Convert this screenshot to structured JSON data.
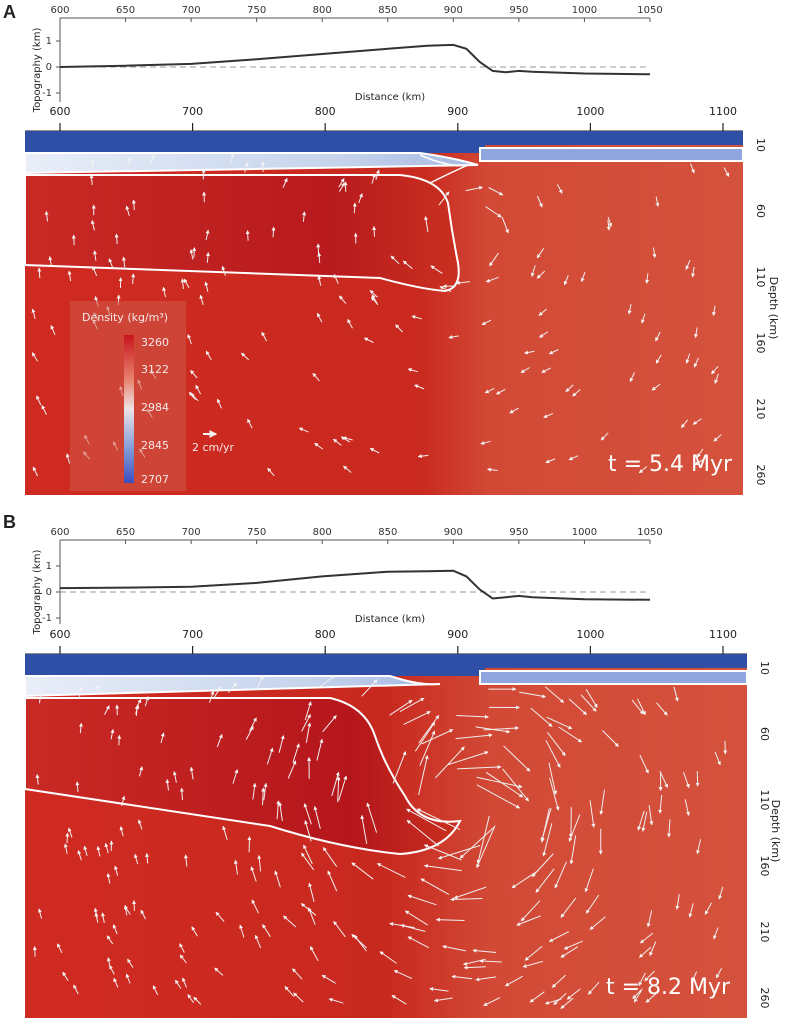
{
  "panels": [
    {
      "letter": "A",
      "topo_ylabel": "Topography (km)",
      "topo_xlabel": "Distance (km)",
      "topo_xticks": [
        "600",
        "650",
        "700",
        "750",
        "800",
        "850",
        "900",
        "950",
        "1000",
        "1050"
      ],
      "topo_yticks": [
        "1",
        "0",
        "-1"
      ],
      "field_xticks": [
        "600",
        "700",
        "800",
        "900",
        "1000",
        "1100"
      ],
      "depth_label": "Depth (km)",
      "depth_ticks": [
        "10",
        "60",
        "110",
        "160",
        "210",
        "260"
      ],
      "time_label": "t = 5.4 Myr"
    },
    {
      "letter": "B",
      "topo_ylabel": "Topography (km)",
      "topo_xlabel": "Distance (km)",
      "topo_xticks": [
        "600",
        "650",
        "700",
        "750",
        "800",
        "850",
        "900",
        "950",
        "1000",
        "1050"
      ],
      "topo_yticks": [
        "1",
        "0",
        "-1"
      ],
      "field_xticks": [
        "600",
        "700",
        "800",
        "900",
        "1000",
        "1100"
      ],
      "depth_label": "Depth (km)",
      "depth_ticks": [
        "10",
        "60",
        "110",
        "160",
        "210",
        "260"
      ],
      "time_label": "t = 8.2 Myr"
    }
  ],
  "colorbar": {
    "title": "Density (kg/m³)",
    "ticks": [
      "3260",
      "3122",
      "2984",
      "2845",
      "2707"
    ]
  },
  "velocity_scale_label": "2 cm/yr",
  "chart_data": [
    {
      "type": "line",
      "panel": "A",
      "x": [
        600,
        650,
        700,
        750,
        800,
        850,
        880,
        900,
        910,
        920,
        930,
        940,
        950,
        960,
        1000,
        1050
      ],
      "y": [
        0.0,
        0.05,
        0.12,
        0.3,
        0.5,
        0.7,
        0.82,
        0.85,
        0.7,
        0.2,
        -0.15,
        -0.2,
        -0.15,
        -0.18,
        -0.25,
        -0.28
      ],
      "xlabel": "Distance (km)",
      "ylabel": "Topography (km)",
      "xlim": [
        600,
        1050
      ],
      "ylim": [
        -1,
        1
      ]
    },
    {
      "type": "line",
      "panel": "B",
      "x": [
        600,
        650,
        700,
        750,
        800,
        850,
        880,
        900,
        910,
        920,
        930,
        940,
        950,
        960,
        1000,
        1050
      ],
      "y": [
        0.15,
        0.17,
        0.2,
        0.35,
        0.6,
        0.78,
        0.8,
        0.82,
        0.6,
        0.1,
        -0.25,
        -0.2,
        -0.15,
        -0.2,
        -0.28,
        -0.3
      ],
      "xlabel": "Distance (km)",
      "ylabel": "Topography (km)",
      "xlim": [
        600,
        1050
      ],
      "ylim": [
        -1,
        1
      ]
    }
  ]
}
